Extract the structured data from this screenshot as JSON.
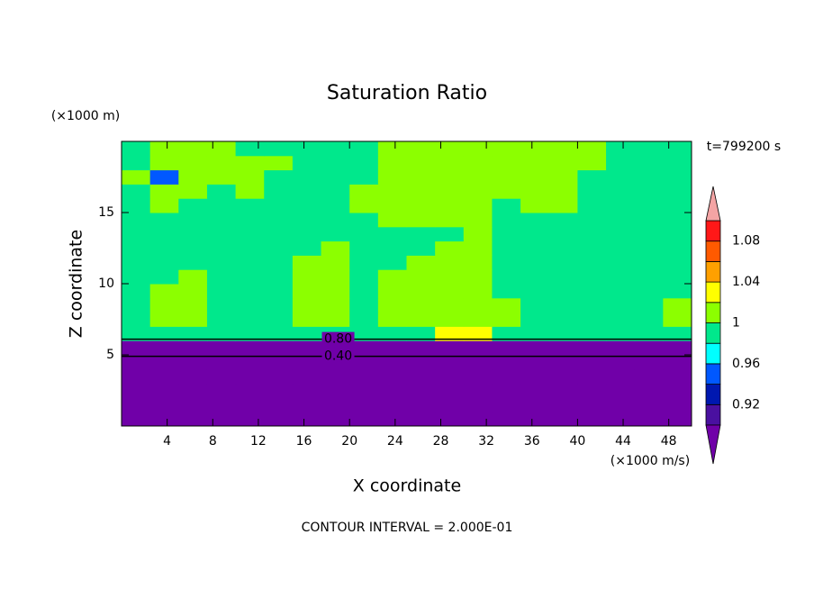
{
  "chart_data": {
    "type": "contour",
    "title": "Saturation Ratio",
    "xlabel": "X coordinate",
    "ylabel": "Z coordinate",
    "x_unit_label": "(×1000 m/s)",
    "y_unit_label": "(×1000 m)",
    "time_label": "t=799200 s",
    "footer": "CONTOUR INTERVAL = 2.000E-01",
    "xlim": [
      0,
      50
    ],
    "xticks": [
      4,
      8,
      12,
      16,
      20,
      24,
      28,
      32,
      36,
      40,
      44,
      48
    ],
    "ylim": [
      0,
      20
    ],
    "yticks": [
      5,
      10,
      15
    ],
    "colorbar": {
      "levels": [
        0.9,
        0.92,
        0.94,
        0.96,
        0.98,
        1,
        1.02,
        1.04,
        1.06,
        1.08,
        1.1
      ],
      "colors": [
        "#7000a8",
        "#4a10a0",
        "#0018b0",
        "#0058ff",
        "#00ffff",
        "#00e88c",
        "#8cff00",
        "#ffff00",
        "#ffa000",
        "#ff5a00",
        "#ff1818",
        "#f4a4a4"
      ],
      "ticks": [
        0.92,
        0.96,
        1,
        1.04,
        1.08
      ]
    },
    "x": [
      1.25,
      3.75,
      6.25,
      8.75,
      11.25,
      13.75,
      16.25,
      18.75,
      21.25,
      23.75,
      26.25,
      28.75,
      31.25,
      33.75,
      36.25,
      38.75,
      41.25,
      43.75,
      46.25,
      48.75
    ],
    "z": [
      0.5,
      1.5,
      2.5,
      3.5,
      4.5,
      5.5,
      6.5,
      7.5,
      8.5,
      9.5,
      10.5,
      11.5,
      12.5,
      13.5,
      14.5,
      15.5,
      16.5,
      17.5,
      18.5,
      19.5
    ],
    "values": [
      [
        0.2,
        0.2,
        0.2,
        0.2,
        0.2,
        0.2,
        0.2,
        0.2,
        0.2,
        0.2,
        0.2,
        0.2,
        0.2,
        0.2,
        0.2,
        0.2,
        0.2,
        0.2,
        0.2,
        0.2
      ],
      [
        0.2,
        0.2,
        0.2,
        0.2,
        0.2,
        0.2,
        0.2,
        0.2,
        0.2,
        0.2,
        0.2,
        0.2,
        0.2,
        0.2,
        0.2,
        0.2,
        0.2,
        0.2,
        0.2,
        0.2
      ],
      [
        0.2,
        0.2,
        0.2,
        0.2,
        0.2,
        0.2,
        0.2,
        0.2,
        0.2,
        0.2,
        0.2,
        0.2,
        0.2,
        0.2,
        0.2,
        0.2,
        0.2,
        0.2,
        0.2,
        0.2
      ],
      [
        0.2,
        0.2,
        0.2,
        0.2,
        0.2,
        0.2,
        0.2,
        0.2,
        0.2,
        0.2,
        0.2,
        0.2,
        0.2,
        0.2,
        0.2,
        0.2,
        0.2,
        0.2,
        0.2,
        0.2
      ],
      [
        0.5,
        0.5,
        0.5,
        0.5,
        0.5,
        0.5,
        0.5,
        0.5,
        0.5,
        0.5,
        0.5,
        0.5,
        0.5,
        0.5,
        0.5,
        0.5,
        0.5,
        0.5,
        0.5,
        0.5
      ],
      [
        0.75,
        0.75,
        0.75,
        0.75,
        0.75,
        0.75,
        0.75,
        0.75,
        0.75,
        0.75,
        0.75,
        0.75,
        0.75,
        0.75,
        0.75,
        0.75,
        0.75,
        0.75,
        0.75,
        0.75
      ],
      [
        0.99,
        0.99,
        0.99,
        0.99,
        0.99,
        0.99,
        0.99,
        0.99,
        0.99,
        0.99,
        0.99,
        1.03,
        1.03,
        0.99,
        0.99,
        0.99,
        0.99,
        0.99,
        0.99,
        0.99
      ],
      [
        0.99,
        1.01,
        1.01,
        0.99,
        0.99,
        0.99,
        1.01,
        1.01,
        0.99,
        1.01,
        1.01,
        1.01,
        1.01,
        1.01,
        0.99,
        0.99,
        0.99,
        0.99,
        0.99,
        1.01
      ],
      [
        0.99,
        1.01,
        1.01,
        0.99,
        0.99,
        0.99,
        1.01,
        1.01,
        0.99,
        1.01,
        1.01,
        1.01,
        1.01,
        1.01,
        0.99,
        0.99,
        0.99,
        0.99,
        0.99,
        1.01
      ],
      [
        0.99,
        1.01,
        1.01,
        0.99,
        0.99,
        0.99,
        1.01,
        1.01,
        0.99,
        1.01,
        1.01,
        1.01,
        1.01,
        0.99,
        0.99,
        0.99,
        0.99,
        0.99,
        0.99,
        0.99
      ],
      [
        0.99,
        0.99,
        1.01,
        0.99,
        0.99,
        0.99,
        1.01,
        1.01,
        0.99,
        1.01,
        1.01,
        1.01,
        1.01,
        0.99,
        0.99,
        0.99,
        0.99,
        0.99,
        0.99,
        0.99
      ],
      [
        0.99,
        0.99,
        0.99,
        0.99,
        0.99,
        0.99,
        1.01,
        1.01,
        0.99,
        0.99,
        1.01,
        1.01,
        1.01,
        0.99,
        0.99,
        0.99,
        0.99,
        0.99,
        0.99,
        0.99
      ],
      [
        0.99,
        0.99,
        0.99,
        0.99,
        0.99,
        0.99,
        0.99,
        1.01,
        0.99,
        0.99,
        0.99,
        1.01,
        1.01,
        0.99,
        0.99,
        0.99,
        0.99,
        0.99,
        0.99,
        0.99
      ],
      [
        0.99,
        0.99,
        0.99,
        0.99,
        0.99,
        0.99,
        0.99,
        0.99,
        0.99,
        0.99,
        0.99,
        0.99,
        1.01,
        0.99,
        0.99,
        0.99,
        0.99,
        0.99,
        0.99,
        0.99
      ],
      [
        0.99,
        0.99,
        0.99,
        0.99,
        0.99,
        0.99,
        0.99,
        0.99,
        0.99,
        1.01,
        1.01,
        1.01,
        1.01,
        0.99,
        0.99,
        0.99,
        0.99,
        0.99,
        0.99,
        0.99
      ],
      [
        0.99,
        1.01,
        0.99,
        0.99,
        0.99,
        0.99,
        0.99,
        0.99,
        1.01,
        1.01,
        1.01,
        1.01,
        1.01,
        0.99,
        1.01,
        1.01,
        0.99,
        0.99,
        0.99,
        0.99
      ],
      [
        0.99,
        1.01,
        1.01,
        0.99,
        1.01,
        0.99,
        0.99,
        0.99,
        1.01,
        1.01,
        1.01,
        1.01,
        1.01,
        1.01,
        1.01,
        1.01,
        0.99,
        0.99,
        0.99,
        0.99
      ],
      [
        1.01,
        0.95,
        1.01,
        1.01,
        1.01,
        0.99,
        0.99,
        0.99,
        0.99,
        1.01,
        1.01,
        1.01,
        1.01,
        1.01,
        1.01,
        1.01,
        0.99,
        0.99,
        0.99,
        0.99
      ],
      [
        0.99,
        1.01,
        1.01,
        1.01,
        1.01,
        1.01,
        0.99,
        0.99,
        0.99,
        1.01,
        1.01,
        1.01,
        1.01,
        1.01,
        1.01,
        1.01,
        1.01,
        0.99,
        0.99,
        0.99
      ],
      [
        0.99,
        1.01,
        1.01,
        1.01,
        0.99,
        0.99,
        0.99,
        0.99,
        0.99,
        1.01,
        1.01,
        1.01,
        1.01,
        1.01,
        1.01,
        1.01,
        1.01,
        0.99,
        0.99,
        0.99
      ]
    ],
    "contours": [
      {
        "level": 0.8,
        "label": "0.80",
        "z": 6.1
      },
      {
        "level": 0.4,
        "label": "0.40",
        "z": 4.9
      }
    ]
  }
}
